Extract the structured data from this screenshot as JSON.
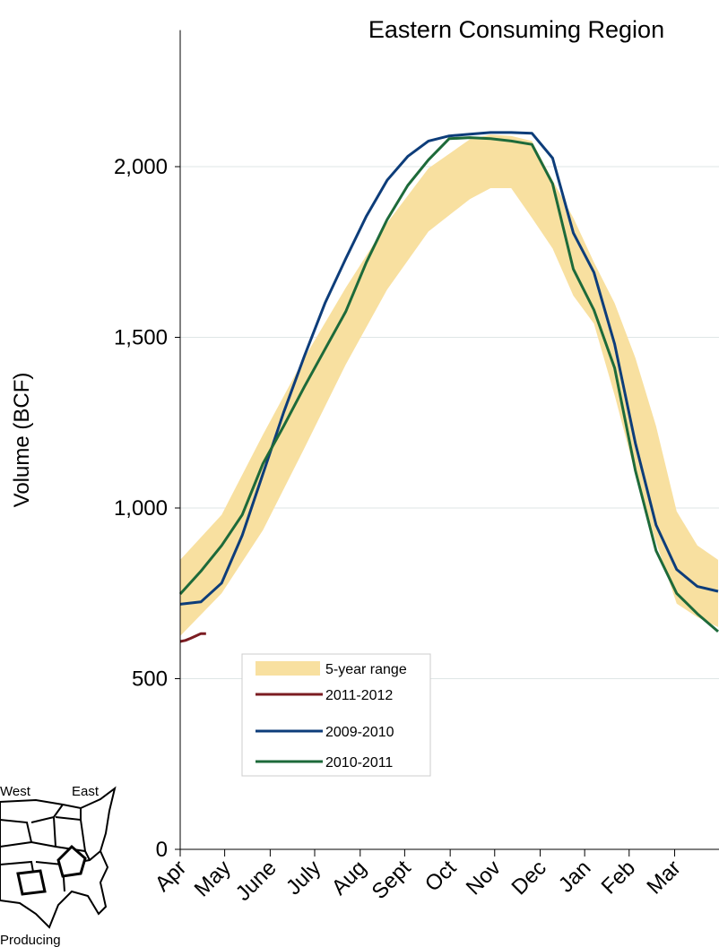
{
  "chart_data": {
    "type": "line",
    "title": "Eastern Consuming Region",
    "y_label": "Volume (BCF)",
    "xlim": [
      0,
      52
    ],
    "xticks": [
      {
        "value": 0,
        "label": "Apr"
      },
      {
        "value": 4.3,
        "label": "May"
      },
      {
        "value": 8.7,
        "label": "June"
      },
      {
        "value": 13,
        "label": "July"
      },
      {
        "value": 17.4,
        "label": "Aug"
      },
      {
        "value": 21.7,
        "label": "Sept"
      },
      {
        "value": 26.1,
        "label": "Oct"
      },
      {
        "value": 30.4,
        "label": "Nov"
      },
      {
        "value": 34.8,
        "label": "Dec"
      },
      {
        "value": 39.1,
        "label": "Jan"
      },
      {
        "value": 43.4,
        "label": "Feb"
      },
      {
        "value": 47.8,
        "label": "Mar"
      }
    ],
    "ylim": [
      0,
      2400
    ],
    "yticks": [
      0,
      500,
      {
        "value": 1000,
        "label": "1,000"
      },
      {
        "value": 1500,
        "label": "1,500"
      },
      {
        "value": 2000,
        "label": "2,000"
      }
    ],
    "grid": true,
    "series": [
      {
        "name": "5-year range",
        "color": "#f8e0a0",
        "x": [
          0,
          4,
          8,
          12,
          16,
          20,
          24,
          28,
          30,
          32,
          34,
          36,
          38,
          40,
          42,
          44,
          46,
          48,
          50,
          52
        ],
        "upper": [
          848,
          980,
          1215,
          1440,
          1645,
          1835,
          1995,
          2080,
          2094,
          2090,
          2075,
          1960,
          1850,
          1720,
          1600,
          1440,
          1240,
          990,
          890,
          848
        ],
        "lower": [
          625,
          750,
          935,
          1175,
          1420,
          1640,
          1810,
          1905,
          1937,
          1937,
          1850,
          1760,
          1622,
          1540,
          1330,
          1100,
          900,
          720,
          680,
          651
        ]
      },
      {
        "name": "2011-2012",
        "color": "#7b1c22",
        "x": [
          0,
          0.5,
          1,
          1.5,
          2,
          2.5
        ],
        "values": [
          609,
          612,
          618,
          625,
          632,
          632
        ]
      },
      {
        "name": "2009-2010",
        "color": "#0d3d7a",
        "x": [
          0,
          2,
          4,
          6,
          8,
          10,
          12,
          14,
          16,
          18,
          20,
          22,
          24,
          26,
          28,
          30,
          32,
          34,
          36,
          38,
          40,
          42,
          44,
          46,
          48,
          50,
          52
        ],
        "values": [
          718,
          725,
          780,
          920,
          1100,
          1280,
          1445,
          1600,
          1730,
          1855,
          1960,
          2030,
          2075,
          2090,
          2095,
          2100,
          2100,
          2098,
          2025,
          1806,
          1690,
          1480,
          1190,
          950,
          820,
          770,
          756
        ]
      },
      {
        "name": "2010-2011",
        "color": "#1d6a3a",
        "x": [
          0,
          2,
          4,
          6,
          8,
          10,
          12,
          14,
          16,
          18,
          20,
          22,
          24,
          26,
          28,
          30,
          32,
          34,
          36,
          38,
          40,
          42,
          44,
          46,
          48,
          50,
          52
        ],
        "values": [
          748,
          815,
          890,
          980,
          1130,
          1240,
          1355,
          1465,
          1575,
          1720,
          1845,
          1945,
          2020,
          2082,
          2085,
          2082,
          2075,
          2065,
          1950,
          1700,
          1580,
          1410,
          1110,
          875,
          750,
          690,
          638
        ]
      }
    ],
    "inset": {
      "west": "West",
      "east": "East",
      "producing": "Producing"
    }
  }
}
